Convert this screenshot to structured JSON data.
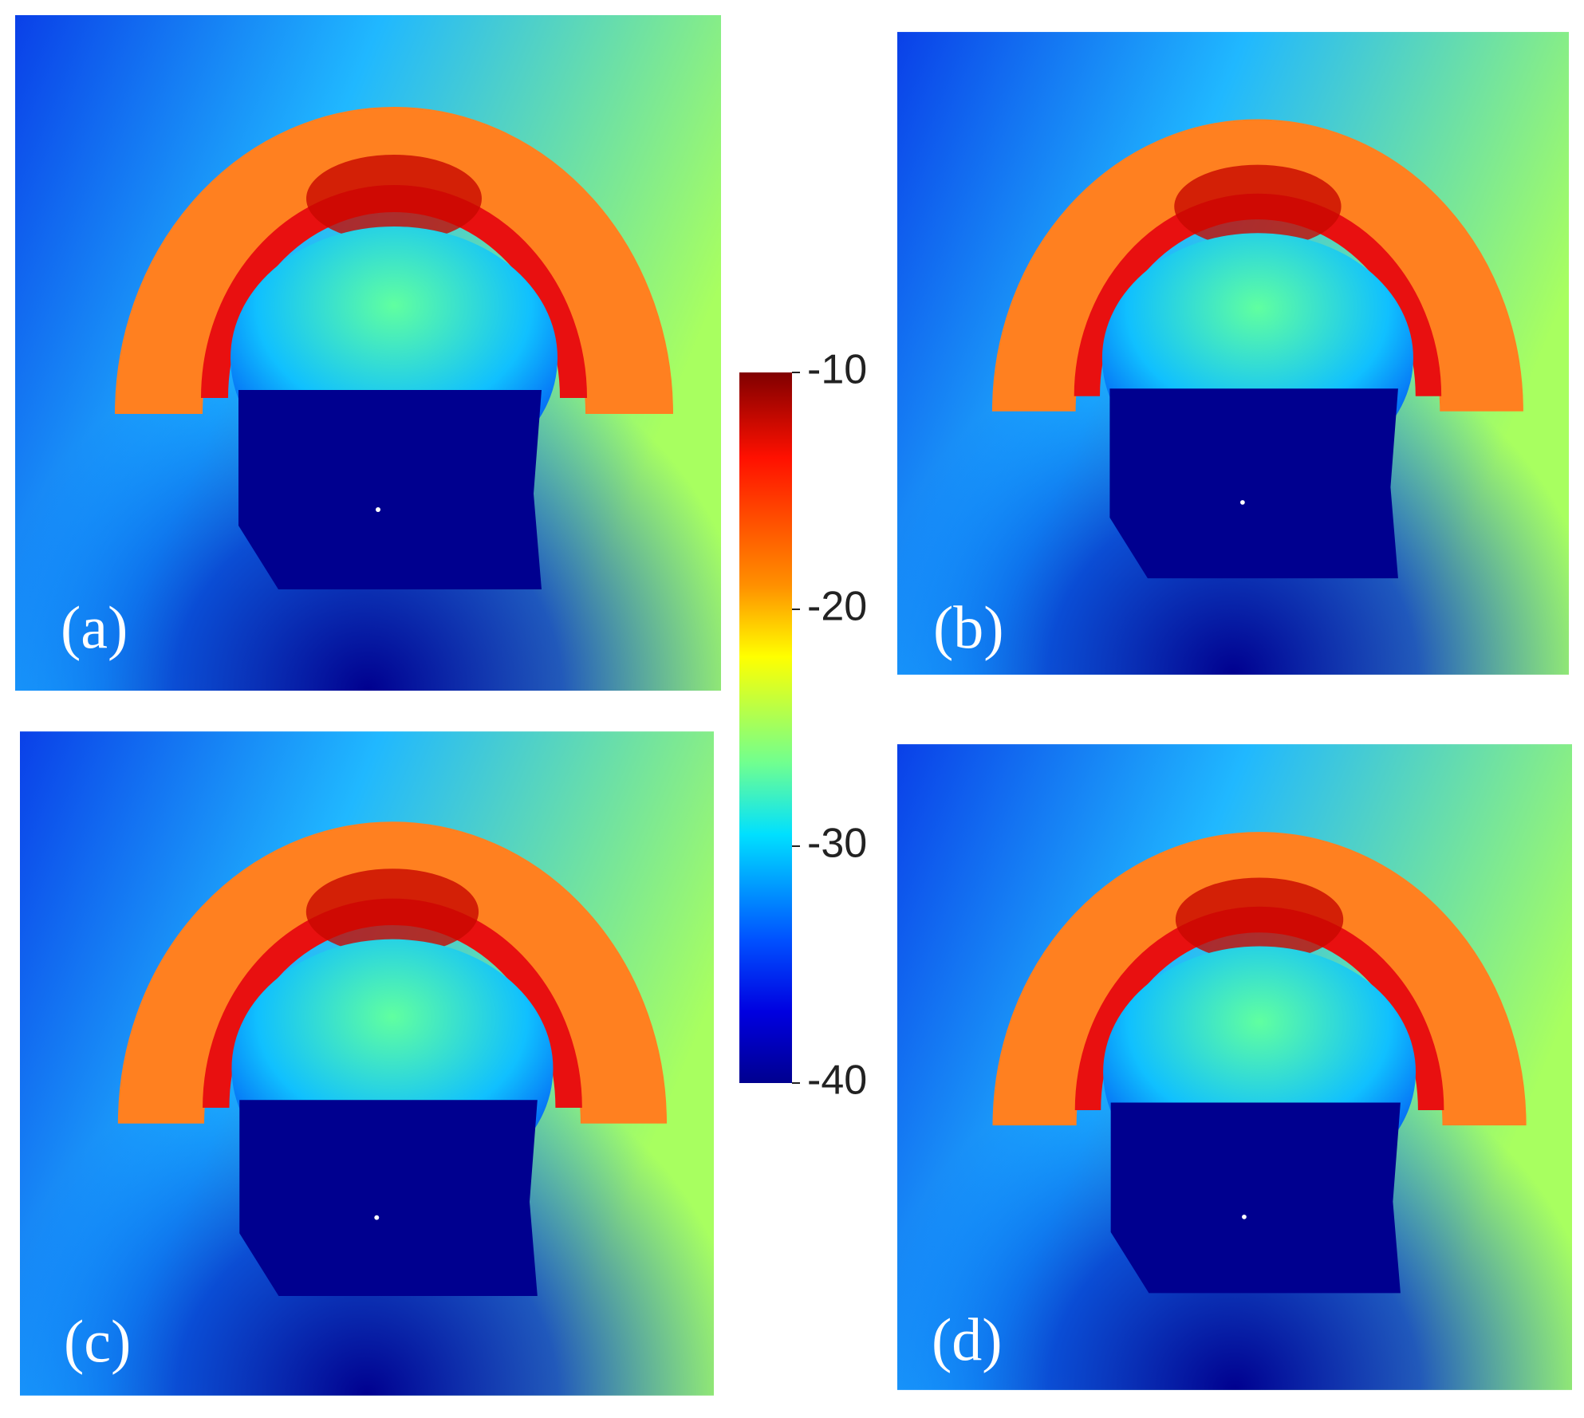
{
  "panels": [
    {
      "label": "(a)"
    },
    {
      "label": "(b)"
    },
    {
      "label": "(c)"
    },
    {
      "label": "(d)"
    }
  ],
  "colorbar": {
    "lim": [
      -40,
      -10
    ],
    "ticks": [
      -10,
      -20,
      -30,
      -40
    ]
  }
}
